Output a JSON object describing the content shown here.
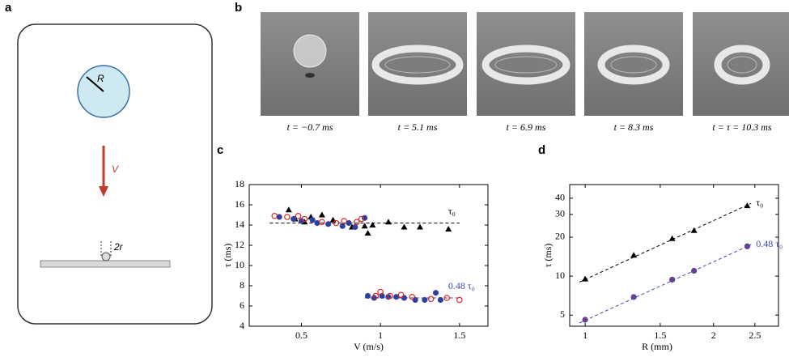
{
  "panel_a": {
    "label": "a",
    "radius_label": "R",
    "velocity_label": "V",
    "gap_label": "2r"
  },
  "panel_b": {
    "label": "b",
    "captions": [
      "t = −0.7 ms",
      "t = 5.1 ms",
      "t = 6.9 ms",
      "t = 8.3 ms",
      "t = τ = 10.3 ms"
    ]
  },
  "chart_data": [
    {
      "type": "scatter",
      "panel_label": "c",
      "x_label": "V (m/s)",
      "y_label": "τ (ms)",
      "xlim": [
        0.17,
        1.68
      ],
      "xticks": [
        0.5,
        1,
        1.5
      ],
      "ylim": [
        4,
        18
      ],
      "yticks": [
        4,
        6,
        8,
        10,
        12,
        14,
        16,
        18
      ],
      "log": false,
      "series": [
        {
          "marker": "triangle",
          "color": "#000000",
          "x": [
            0.42,
            0.46,
            0.52,
            0.56,
            0.63,
            0.7,
            0.82,
            0.9,
            0.92,
            0.95,
            1.05,
            1.15,
            1.25,
            1.43
          ],
          "values": [
            15.5,
            14.6,
            14.3,
            14.8,
            15.0,
            14.5,
            13.8,
            13.9,
            13.2,
            14.0,
            14.3,
            13.8,
            13.8,
            13.6
          ]
        },
        {
          "marker": "dot",
          "color": "#2b3fa0",
          "x": [
            0.36,
            0.45,
            0.5,
            0.57,
            0.6,
            0.67,
            0.76,
            0.8,
            0.84,
            0.9,
            0.92,
            0.96,
            1.01,
            1.05,
            1.1,
            1.15,
            1.22,
            1.28,
            1.35,
            1.38
          ],
          "values": [
            14.8,
            14.6,
            14.4,
            14.5,
            14.2,
            14.1,
            13.9,
            14.2,
            13.8,
            14.7,
            7.0,
            6.8,
            7.0,
            6.9,
            6.9,
            6.8,
            6.6,
            6.6,
            7.3,
            6.6
          ]
        },
        {
          "marker": "open-circle",
          "color": "#e0201b",
          "x": [
            0.33,
            0.41,
            0.48,
            0.52,
            0.63,
            0.72,
            0.77,
            0.85,
            0.88,
            0.97,
            1.0,
            1.06,
            1.13,
            1.2,
            1.32,
            1.42,
            1.5
          ],
          "values": [
            14.9,
            14.8,
            14.9,
            14.6,
            14.3,
            14.2,
            14.4,
            14.3,
            14.6,
            7.0,
            7.4,
            7.0,
            7.1,
            6.9,
            6.7,
            6.8,
            6.6
          ]
        }
      ],
      "reference_lines": [
        {
          "label": "τ₀",
          "color": "#000000",
          "x": [
            0.3,
            1.5
          ],
          "values": [
            14.2,
            14.2
          ]
        },
        {
          "label": "0.48 τ₀",
          "color": "#3a4aa8",
          "x": [
            0.9,
            1.5
          ],
          "values": [
            6.8,
            6.8
          ]
        }
      ]
    },
    {
      "type": "scatter",
      "panel_label": "d",
      "x_label": "R (mm)",
      "y_label": "τ (ms)",
      "xlim": [
        0.92,
        2.84
      ],
      "xticks": [
        1,
        1.5,
        2,
        2.5
      ],
      "ylim": [
        4.1,
        51
      ],
      "yticks": [
        5,
        10,
        20,
        30,
        40
      ],
      "log": true,
      "series": [
        {
          "marker": "triangle",
          "color": "#000000",
          "x": [
            1,
            1.3,
            1.6,
            1.8,
            2.4
          ],
          "values": [
            9.5,
            14.5,
            19.5,
            22.5,
            35
          ]
        },
        {
          "marker": "dot",
          "color": "#7a3a8c",
          "x": [
            1,
            1.3,
            1.6,
            1.8,
            2.4
          ],
          "values": [
            4.6,
            6.9,
            9.4,
            11,
            17
          ]
        }
      ],
      "reference_lines": [
        {
          "label": "τ₀",
          "color": "#000000",
          "x": [
            0.97,
            2.45
          ],
          "values": [
            9.0,
            36.5
          ]
        },
        {
          "label": "0.48 τ₀",
          "color": "#3a4aa8",
          "x": [
            0.97,
            2.45
          ],
          "values": [
            4.35,
            17.5
          ]
        }
      ]
    }
  ]
}
